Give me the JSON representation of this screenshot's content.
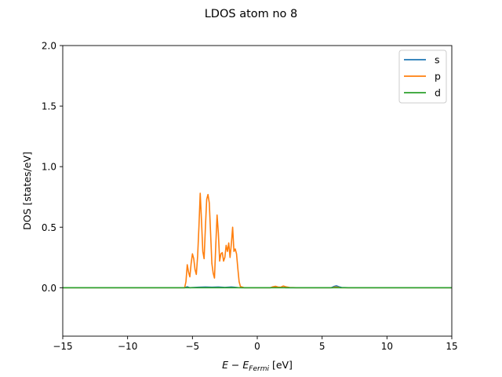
{
  "chart_data": {
    "type": "line",
    "title": "LDOS atom no 8",
    "xlabel_main": "E − E",
    "xlabel_sub": "Fermi",
    "xlabel_unit": " [eV]",
    "ylabel": "DOS [states/eV]",
    "xlim": [
      -15,
      15
    ],
    "ylim": [
      -0.4,
      2.0
    ],
    "x_ticks": [
      -15,
      -10,
      -5,
      0,
      5,
      10,
      15
    ],
    "x_tick_labels": [
      "−15",
      "−10",
      "−5",
      "0",
      "5",
      "10",
      "15"
    ],
    "y_ticks": [
      0.0,
      0.5,
      1.0,
      1.5,
      2.0
    ],
    "y_tick_labels": [
      "0.0",
      "0.5",
      "1.0",
      "1.5",
      "2.0"
    ],
    "grid": false,
    "legend_position": "top-right",
    "series": [
      {
        "name": "s",
        "color": "#1f77b4",
        "points": [
          [
            -15,
            0.0
          ],
          [
            -5.6,
            0.0
          ],
          [
            -5.4,
            0.008
          ],
          [
            -5.2,
            0.0
          ],
          [
            -4.5,
            0.004
          ],
          [
            -4.0,
            0.006
          ],
          [
            -3.5,
            0.004
          ],
          [
            -3.0,
            0.006
          ],
          [
            -2.5,
            0.003
          ],
          [
            -2.0,
            0.006
          ],
          [
            -1.8,
            0.004
          ],
          [
            -1.5,
            0.001
          ],
          [
            -1.0,
            0.0
          ],
          [
            1.0,
            0.0
          ],
          [
            1.4,
            0.004
          ],
          [
            1.8,
            0.003
          ],
          [
            2.2,
            0.0
          ],
          [
            5.7,
            0.0
          ],
          [
            5.9,
            0.01
          ],
          [
            6.1,
            0.016
          ],
          [
            6.3,
            0.008
          ],
          [
            6.5,
            0.002
          ],
          [
            7.0,
            0.0
          ],
          [
            15,
            0.0
          ]
        ]
      },
      {
        "name": "p",
        "color": "#ff7f0e",
        "points": [
          [
            -15,
            0.0
          ],
          [
            -5.6,
            0.0
          ],
          [
            -5.5,
            0.05
          ],
          [
            -5.4,
            0.19
          ],
          [
            -5.3,
            0.13
          ],
          [
            -5.2,
            0.09
          ],
          [
            -5.1,
            0.2
          ],
          [
            -5.0,
            0.28
          ],
          [
            -4.9,
            0.24
          ],
          [
            -4.8,
            0.15
          ],
          [
            -4.7,
            0.11
          ],
          [
            -4.6,
            0.26
          ],
          [
            -4.5,
            0.5
          ],
          [
            -4.4,
            0.78
          ],
          [
            -4.3,
            0.55
          ],
          [
            -4.2,
            0.3
          ],
          [
            -4.1,
            0.24
          ],
          [
            -4.0,
            0.5
          ],
          [
            -3.9,
            0.73
          ],
          [
            -3.8,
            0.77
          ],
          [
            -3.7,
            0.7
          ],
          [
            -3.6,
            0.45
          ],
          [
            -3.5,
            0.2
          ],
          [
            -3.4,
            0.12
          ],
          [
            -3.3,
            0.08
          ],
          [
            -3.2,
            0.35
          ],
          [
            -3.1,
            0.6
          ],
          [
            -3.0,
            0.45
          ],
          [
            -2.9,
            0.22
          ],
          [
            -2.8,
            0.28
          ],
          [
            -2.7,
            0.29
          ],
          [
            -2.6,
            0.22
          ],
          [
            -2.5,
            0.25
          ],
          [
            -2.4,
            0.35
          ],
          [
            -2.3,
            0.3
          ],
          [
            -2.2,
            0.37
          ],
          [
            -2.1,
            0.25
          ],
          [
            -2.0,
            0.36
          ],
          [
            -1.9,
            0.5
          ],
          [
            -1.8,
            0.3
          ],
          [
            -1.7,
            0.32
          ],
          [
            -1.6,
            0.28
          ],
          [
            -1.5,
            0.16
          ],
          [
            -1.4,
            0.05
          ],
          [
            -1.3,
            0.01
          ],
          [
            -1.0,
            0.0
          ],
          [
            1.0,
            0.0
          ],
          [
            1.2,
            0.008
          ],
          [
            1.4,
            0.012
          ],
          [
            1.6,
            0.006
          ],
          [
            1.8,
            0.004
          ],
          [
            2.0,
            0.014
          ],
          [
            2.2,
            0.008
          ],
          [
            2.5,
            0.002
          ],
          [
            3.0,
            0.0
          ],
          [
            5.8,
            0.0
          ],
          [
            6.0,
            0.006
          ],
          [
            6.2,
            0.004
          ],
          [
            6.4,
            0.0
          ],
          [
            15,
            0.0
          ]
        ]
      },
      {
        "name": "d",
        "color": "#2ca02c",
        "points": [
          [
            -15,
            0.0
          ],
          [
            15,
            0.0
          ]
        ]
      }
    ]
  }
}
